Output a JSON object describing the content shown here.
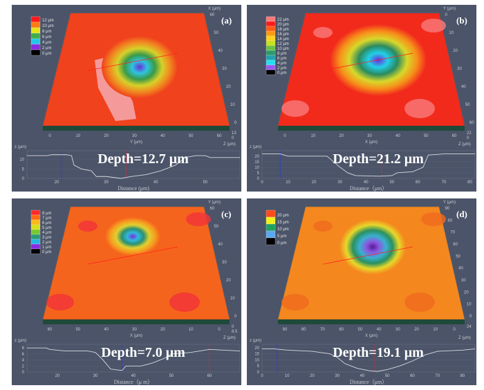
{
  "panels": [
    {
      "label": "(a)",
      "depth_text": "Depth=12.7 μm",
      "legend": [
        {
          "label": "12 μm",
          "color": "#ff1a1a"
        },
        {
          "label": "10 μm",
          "color": "#ff7a10"
        },
        {
          "label": "8 μm",
          "color": "#e6e61a"
        },
        {
          "label": "6 μm",
          "color": "#3fae4a"
        },
        {
          "label": "4 μm",
          "color": "#22c8e6"
        },
        {
          "label": "2 μm",
          "color": "#8a2be2"
        },
        {
          "label": "0 μm",
          "color": "#000000"
        }
      ],
      "surface": {
        "base": "#f0421c",
        "pit": [
          "#6a2fd8",
          "#2ec4e0",
          "#3a9a48",
          "#d7d12a",
          "#f08a20"
        ],
        "patch": "#f59a9a"
      },
      "right_axis": {
        "ticks": [
          "60",
          "50",
          "40",
          "30",
          "20",
          "10",
          "0"
        ],
        "title": "X (μm)"
      },
      "bottom_axis": {
        "ticks": [
          "0",
          "10",
          "20",
          "30",
          "40",
          "50",
          "60"
        ],
        "title": "Y (μm)"
      },
      "z_axis": {
        "ticks": [
          "13",
          "0"
        ],
        "title": "Z (μm)"
      },
      "profile": {
        "ylabel": "z (μm)",
        "xlabel": "Distance (μm)",
        "xlim": [
          14,
          57
        ],
        "ylim": [
          0,
          13.5
        ],
        "yticks": [
          "0",
          "5",
          "10"
        ],
        "ytick_values": [
          0,
          5,
          10
        ],
        "xticks": [
          "20",
          "30",
          "40",
          "50"
        ],
        "xtick_values": [
          20,
          30,
          40,
          50
        ],
        "x": [
          14,
          18,
          19,
          22,
          23,
          23.5,
          25,
          27,
          28,
          30,
          33,
          35,
          38,
          41,
          44,
          46,
          48,
          50,
          51,
          57
        ],
        "y": [
          12,
          12,
          12.5,
          12.5,
          12,
          7,
          5,
          4,
          1,
          1,
          0,
          1,
          2,
          4,
          7,
          11,
          12,
          12,
          11,
          11
        ],
        "markers": [
          21,
          34
        ]
      }
    },
    {
      "label": "(b)",
      "depth_text": "Depth=21.2 μm",
      "legend": [
        {
          "label": "22 μm",
          "color": "#f77a7a"
        },
        {
          "label": "20 μm",
          "color": "#ff1a1a"
        },
        {
          "label": "18 μm",
          "color": "#ff5a10"
        },
        {
          "label": "16 μm",
          "color": "#ff9a10"
        },
        {
          "label": "14 μm",
          "color": "#ffd21a"
        },
        {
          "label": "12 μm",
          "color": "#c8e01a"
        },
        {
          "label": "10 μm",
          "color": "#6cc040"
        },
        {
          "label": "8 μm",
          "color": "#2a9a6a"
        },
        {
          "label": "6 μm",
          "color": "#20a0b0"
        },
        {
          "label": "4 μm",
          "color": "#22e0f0"
        },
        {
          "label": "2 μm",
          "color": "#9a5af0"
        },
        {
          "label": "0 μm",
          "color": "#000000"
        }
      ],
      "surface": {
        "base": "#f22a1c",
        "pit": [
          "#6a2fd8",
          "#22d0e8",
          "#2a8a60",
          "#d8d82a",
          "#f7901a"
        ],
        "patch": "#f77a7a"
      },
      "right_axis": {
        "ticks": [
          "0",
          "10",
          "20",
          "30",
          "40",
          "50",
          "60"
        ],
        "title": "Y (μm)"
      },
      "bottom_axis": {
        "ticks": [
          "0",
          "10",
          "20",
          "30",
          "40",
          "50",
          "60"
        ],
        "title": "X (μm)"
      },
      "z_axis": {
        "ticks": [
          "22",
          "0"
        ],
        "title": "Z (μm)"
      },
      "profile": {
        "ylabel": "z (μm)",
        "xlabel": "Distance（μm）",
        "xlim": [
          0,
          82
        ],
        "ylim": [
          0,
          23
        ],
        "yticks": [
          "0",
          "5",
          "10",
          "15",
          "20"
        ],
        "ytick_values": [
          0,
          5,
          10,
          15,
          20
        ],
        "xticks": [
          "0",
          "10",
          "20",
          "30",
          "40",
          "50",
          "60",
          "70",
          "80"
        ],
        "xtick_values": [
          0,
          10,
          20,
          30,
          40,
          50,
          60,
          70,
          80
        ],
        "x": [
          0,
          7,
          10,
          25,
          30,
          33,
          36,
          45,
          50,
          52,
          58,
          62,
          64,
          70,
          82
        ],
        "y": [
          22,
          22,
          20,
          20,
          10,
          5,
          2.5,
          2,
          2.5,
          5,
          6,
          10,
          21,
          22,
          22
        ],
        "markers": [
          7,
          46
        ]
      }
    },
    {
      "label": "(c)",
      "depth_text": "Depth=7.0 μm",
      "legend": [
        {
          "label": "8 μm",
          "color": "#ff2a2a"
        },
        {
          "label": "7 μm",
          "color": "#ff6a10"
        },
        {
          "label": "6 μm",
          "color": "#ffb81a"
        },
        {
          "label": "5 μm",
          "color": "#d8e01a"
        },
        {
          "label": "4 μm",
          "color": "#7ac830"
        },
        {
          "label": "3 μm",
          "color": "#2a9a7a"
        },
        {
          "label": "2 μm",
          "color": "#22b8e0"
        },
        {
          "label": "1 μm",
          "color": "#8a2be2"
        },
        {
          "label": "0 μm",
          "color": "#000000"
        }
      ],
      "surface": {
        "base": "#f5641c",
        "pit": [
          "#7a30d8",
          "#30b8e0",
          "#2a9070",
          "#e0d030",
          "#f5a020"
        ],
        "patch": "#f2323a"
      },
      "right_axis": {
        "ticks": [
          "60",
          "50",
          "40",
          "30",
          "20",
          "10",
          "0"
        ],
        "title": "Y (μm)"
      },
      "bottom_axis": {
        "ticks": [
          "60",
          "50",
          "40",
          "30",
          "20",
          "10",
          "0"
        ],
        "title": "X (μm)"
      },
      "z_axis": {
        "ticks": [
          "0",
          "8.5"
        ],
        "title": "Z (μm)"
      },
      "profile": {
        "ylabel": "z (μm)",
        "xlabel": "Distance（μ m）",
        "xlim": [
          12,
          68
        ],
        "ylim": [
          0,
          8.5
        ],
        "yticks": [
          "0",
          "2",
          "4",
          "6",
          "8"
        ],
        "ytick_values": [
          0,
          2,
          4,
          6,
          8
        ],
        "xticks": [
          "20",
          "30",
          "40",
          "50",
          "60"
        ],
        "xtick_values": [
          20,
          30,
          40,
          50,
          60
        ],
        "x": [
          12,
          17,
          18,
          22,
          28,
          30,
          32,
          34,
          37,
          38,
          42,
          45,
          48,
          50,
          55,
          60,
          68
        ],
        "y": [
          8,
          8,
          7.5,
          7,
          7,
          6.5,
          4,
          1,
          0.5,
          2,
          2,
          3,
          4.5,
          6,
          6.5,
          7.5,
          7
        ],
        "markers": [
          37,
          60
        ]
      }
    },
    {
      "label": "(d)",
      "depth_text": "Depth=19.1 μm",
      "legend": [
        {
          "label": "20 μm",
          "color": "#ff4a1a"
        },
        {
          "label": "15 μm",
          "color": "#f0f01a"
        },
        {
          "label": "10 μm",
          "color": "#20a060"
        },
        {
          "label": "5 μm",
          "color": "#5aa8f0"
        },
        {
          "label": "0 μm",
          "color": "#000000"
        }
      ],
      "surface": {
        "base": "#f4881e",
        "pit": [
          "#5a1a9a",
          "#8a5ae0",
          "#3ab0d0",
          "#2a9060",
          "#e8d82a"
        ],
        "patch": "#f06a1e"
      },
      "right_axis": {
        "ticks": [
          "90",
          "80",
          "70",
          "60",
          "50",
          "40",
          "30",
          "20",
          "10",
          "0"
        ],
        "title": "Y (μm)"
      },
      "bottom_axis": {
        "ticks": [
          "90",
          "80",
          "70",
          "60",
          "50",
          "40",
          "30",
          "20",
          "10",
          "0"
        ],
        "title": "X (μm)"
      },
      "z_axis": {
        "ticks": [
          "24"
        ],
        "title": "Z (μm)"
      },
      "profile": {
        "ylabel": "z (μm)",
        "xlabel": "Distance（μm）",
        "xlim": [
          0,
          85
        ],
        "ylim": [
          0,
          21
        ],
        "yticks": [
          "0",
          "5",
          "10",
          "15",
          "20"
        ],
        "ytick_values": [
          0,
          5,
          10,
          15,
          20
        ],
        "xticks": [
          "0",
          "10",
          "20",
          "30",
          "40",
          "50",
          "60",
          "70",
          "80"
        ],
        "xtick_values": [
          0,
          10,
          20,
          30,
          40,
          50,
          60,
          70,
          80
        ],
        "x": [
          0,
          5,
          10,
          20,
          27,
          30,
          33,
          38,
          43,
          46,
          50,
          55,
          60,
          65,
          70,
          80,
          85
        ],
        "y": [
          19,
          19,
          18,
          17,
          15,
          12,
          7,
          3,
          1,
          0.5,
          2,
          5,
          9,
          14,
          17,
          18,
          19
        ],
        "markers": [
          6,
          45
        ]
      }
    }
  ]
}
